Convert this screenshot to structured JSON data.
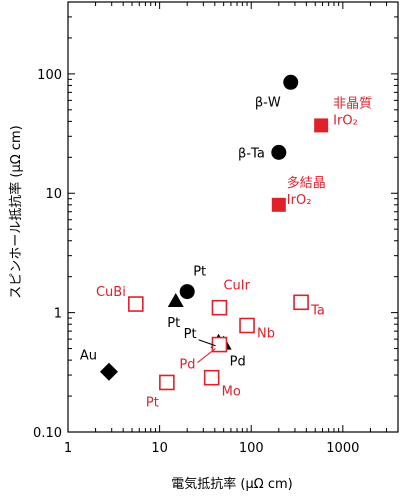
{
  "chart_data": {
    "type": "scatter",
    "xlabel": "電気抵抗率 (μΩ cm)",
    "ylabel": "スピンホール抵抗率 (μΩ cm)",
    "xscale": "log",
    "yscale": "log",
    "xlim": [
      1,
      4000
    ],
    "ylim": [
      0.1,
      400
    ],
    "x_ticks": [
      {
        "value": 1,
        "label": "1"
      },
      {
        "value": 10,
        "label": "10"
      },
      {
        "value": 100,
        "label": "100"
      },
      {
        "value": 1000,
        "label": "1000"
      }
    ],
    "y_ticks": [
      {
        "value": 0.1,
        "label": "0.10"
      },
      {
        "value": 1,
        "label": "1"
      },
      {
        "value": 10,
        "label": "10"
      },
      {
        "value": 100,
        "label": "100"
      }
    ],
    "grid": false,
    "colors": {
      "black": "#000000",
      "red": "#e0202a"
    },
    "points": [
      {
        "x": 270,
        "y": 85,
        "marker": "circle",
        "fill": "black",
        "color": "#000000",
        "label": "β-W"
      },
      {
        "x": 200,
        "y": 22,
        "marker": "circle",
        "fill": "black",
        "color": "#000000",
        "label": "β-Ta"
      },
      {
        "x": 580,
        "y": 37,
        "marker": "square",
        "fill": "solid",
        "color": "#e0202a",
        "label": "非晶質\nIrO₂"
      },
      {
        "x": 200,
        "y": 8,
        "marker": "square",
        "fill": "solid",
        "color": "#e0202a",
        "label": "多結晶\nIrO₂"
      },
      {
        "x": 20,
        "y": 1.5,
        "marker": "circle",
        "fill": "black",
        "color": "#000000",
        "label": "Pt"
      },
      {
        "x": 15,
        "y": 1.25,
        "marker": "triangle",
        "fill": "black",
        "color": "#000000",
        "label": "Pt"
      },
      {
        "x": 5.5,
        "y": 1.18,
        "marker": "square",
        "fill": "open",
        "color": "#e0202a",
        "label": "CuBi"
      },
      {
        "x": 45,
        "y": 1.1,
        "marker": "square",
        "fill": "open",
        "color": "#e0202a",
        "label": "CuIr"
      },
      {
        "x": 350,
        "y": 1.22,
        "marker": "square",
        "fill": "open",
        "color": "#e0202a",
        "label": "Ta"
      },
      {
        "x": 90,
        "y": 0.78,
        "marker": "square",
        "fill": "open",
        "color": "#e0202a",
        "label": "Nb"
      },
      {
        "x": 44,
        "y": 0.57,
        "marker": "triangle",
        "fill": "black",
        "color": "#000000",
        "label": "Pt"
      },
      {
        "x": 50,
        "y": 0.55,
        "marker": "triangle",
        "fill": "black",
        "color": "#000000",
        "label": "Pd"
      },
      {
        "x": 45,
        "y": 0.54,
        "marker": "square",
        "fill": "open",
        "color": "#e0202a",
        "label": "Pd"
      },
      {
        "x": 2.8,
        "y": 0.32,
        "marker": "diamond",
        "fill": "black",
        "color": "#000000",
        "label": "Au"
      },
      {
        "x": 12,
        "y": 0.26,
        "marker": "square",
        "fill": "open",
        "color": "#e0202a",
        "label": "Pt"
      },
      {
        "x": 37,
        "y": 0.285,
        "marker": "square",
        "fill": "open",
        "color": "#e0202a",
        "label": "Mo"
      }
    ]
  }
}
